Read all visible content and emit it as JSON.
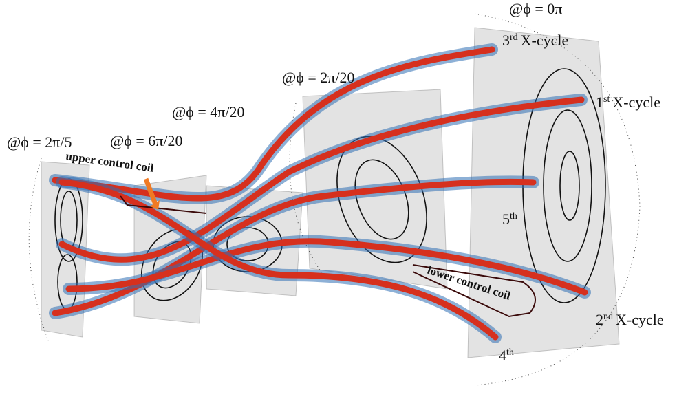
{
  "phase_labels": [
    "@ϕ = 0π",
    "@ϕ = 2π/20",
    "@ϕ = 4π/20",
    "@ϕ = 6π/20",
    "@ϕ = 2π/5"
  ],
  "cycles": [
    {
      "number": "3",
      "suffix": "rd",
      "text": "X-cycle"
    },
    {
      "number": "1",
      "suffix": "st",
      "text": "X-cycle"
    },
    {
      "number": "2",
      "suffix": "nd",
      "text": "X-cycle"
    },
    {
      "number": "5",
      "suffix": "th"
    },
    {
      "number": "4",
      "suffix": "th"
    }
  ],
  "coils": [
    "upper control coil",
    "lower control coil"
  ]
}
